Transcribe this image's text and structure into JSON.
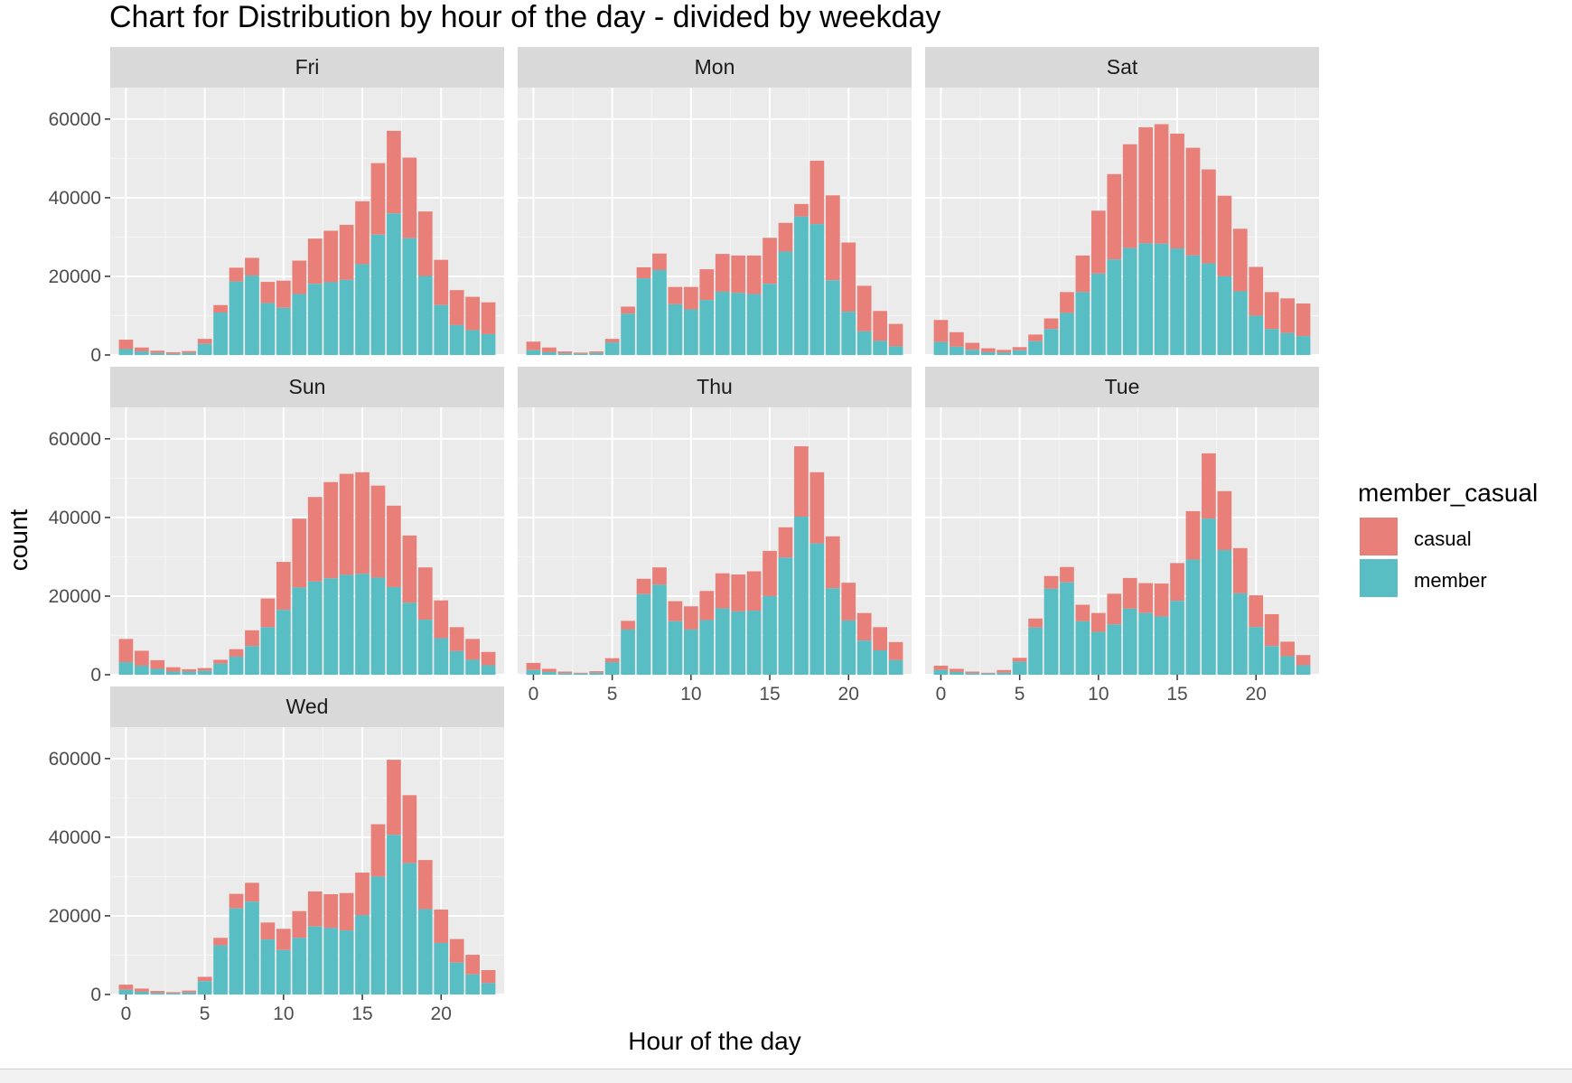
{
  "chart_data": {
    "type": "bar",
    "stacked": true,
    "faceted": true,
    "title": "Chart for Distribution by hour of the day - divided by weekday",
    "xlabel": "Hour of the day",
    "ylabel": "count",
    "xlim": [
      -1,
      24
    ],
    "ylim": [
      0,
      68000
    ],
    "x_ticks": [
      0,
      5,
      10,
      15,
      20
    ],
    "y_ticks": [
      0,
      20000,
      40000,
      60000
    ],
    "grid": true,
    "legend": {
      "title": "member_casual",
      "position": "right",
      "entries": [
        {
          "name": "casual",
          "color": "#F8766D"
        },
        {
          "name": "member",
          "color": "#00BFC4"
        }
      ]
    },
    "colors": {
      "casual": "#E88079",
      "member": "#59BDC4",
      "panel_bg": "#EBEBEB",
      "strip_bg": "#D9D9D9",
      "grid_major": "#FFFFFF",
      "grid_minor": "#F5F5F5"
    },
    "x": [
      0,
      1,
      2,
      3,
      4,
      5,
      6,
      7,
      8,
      9,
      10,
      11,
      12,
      13,
      14,
      15,
      16,
      17,
      18,
      19,
      20,
      21,
      22,
      23
    ],
    "facets": [
      {
        "label": "Fri",
        "member": [
          1500,
          900,
          500,
          300,
          500,
          2800,
          10800,
          18700,
          20200,
          13200,
          12000,
          15500,
          18100,
          18500,
          19100,
          23100,
          30600,
          36000,
          29700,
          20100,
          12700,
          7600,
          6300,
          5300
        ],
        "total": [
          3900,
          1900,
          1100,
          700,
          1000,
          4100,
          12700,
          22200,
          24700,
          18600,
          18900,
          24000,
          29600,
          31600,
          33100,
          39100,
          48800,
          57000,
          50200,
          36500,
          24200,
          16500,
          14800,
          13400
        ]
      },
      {
        "label": "Mon",
        "member": [
          1200,
          700,
          400,
          300,
          500,
          3200,
          10500,
          19500,
          21600,
          12900,
          11600,
          14000,
          16100,
          15800,
          15500,
          18100,
          26300,
          35200,
          33300,
          19000,
          11000,
          6000,
          3600,
          2200
        ],
        "total": [
          3400,
          1900,
          900,
          600,
          900,
          4100,
          12300,
          22300,
          25800,
          17300,
          17300,
          21800,
          25700,
          25300,
          25300,
          29800,
          33600,
          38400,
          49400,
          40600,
          28600,
          17600,
          11200,
          7900
        ]
      },
      {
        "label": "Sat",
        "member": [
          3300,
          2100,
          1300,
          700,
          600,
          1200,
          3500,
          6600,
          10700,
          16000,
          20700,
          24300,
          27200,
          28400,
          28300,
          27100,
          25300,
          23300,
          20000,
          16200,
          10000,
          6600,
          5600,
          4800
        ],
        "total": [
          8900,
          5800,
          3100,
          1700,
          1300,
          2000,
          5200,
          9300,
          16000,
          25300,
          36700,
          46000,
          53600,
          57900,
          58700,
          56300,
          52700,
          47200,
          40500,
          32100,
          22400,
          16000,
          14400,
          13100
        ]
      },
      {
        "label": "Sun",
        "member": [
          3200,
          2300,
          1500,
          800,
          800,
          1000,
          2800,
          4600,
          7300,
          12100,
          16500,
          22200,
          23700,
          24500,
          25400,
          25700,
          24700,
          22300,
          18300,
          14000,
          9300,
          6000,
          3800,
          2400
        ],
        "total": [
          9100,
          6100,
          3700,
          1900,
          1400,
          1700,
          3800,
          6500,
          11300,
          19400,
          28700,
          39700,
          45200,
          49000,
          51100,
          51500,
          48100,
          43000,
          35400,
          27300,
          18900,
          12100,
          9100,
          5800
        ]
      },
      {
        "label": "Thu",
        "member": [
          1200,
          700,
          400,
          300,
          500,
          3200,
          11500,
          20500,
          22900,
          13600,
          11500,
          13900,
          16900,
          16100,
          16300,
          20000,
          29800,
          40200,
          33400,
          22000,
          13800,
          8700,
          6200,
          3700
        ],
        "total": [
          3000,
          1500,
          800,
          500,
          900,
          4200,
          13700,
          24400,
          27300,
          18700,
          17400,
          21300,
          25800,
          25500,
          26300,
          31500,
          37500,
          58100,
          51500,
          35200,
          23400,
          15700,
          12100,
          8300
        ]
      },
      {
        "label": "Tue",
        "member": [
          1200,
          700,
          400,
          300,
          500,
          3300,
          12000,
          21900,
          23500,
          13600,
          10900,
          12800,
          16800,
          15700,
          14800,
          18800,
          29300,
          39700,
          31700,
          20700,
          12100,
          7300,
          4700,
          2400
        ],
        "total": [
          2300,
          1500,
          800,
          500,
          1200,
          4300,
          14300,
          25100,
          27400,
          17800,
          15700,
          20600,
          24600,
          23300,
          23200,
          28400,
          41600,
          56300,
          46700,
          32200,
          20200,
          15400,
          8400,
          5000
        ]
      },
      {
        "label": "Wed",
        "member": [
          1200,
          700,
          400,
          300,
          500,
          3400,
          12500,
          21900,
          23600,
          14000,
          11300,
          14400,
          17300,
          16900,
          16300,
          20200,
          30000,
          40600,
          33400,
          21700,
          13100,
          8100,
          5100,
          2900
        ],
        "total": [
          2500,
          1500,
          900,
          600,
          1000,
          4500,
          14400,
          25600,
          28400,
          18300,
          16700,
          21200,
          26200,
          25500,
          25800,
          31000,
          43300,
          59700,
          50700,
          34200,
          21600,
          14100,
          10100,
          6200
        ]
      }
    ]
  }
}
